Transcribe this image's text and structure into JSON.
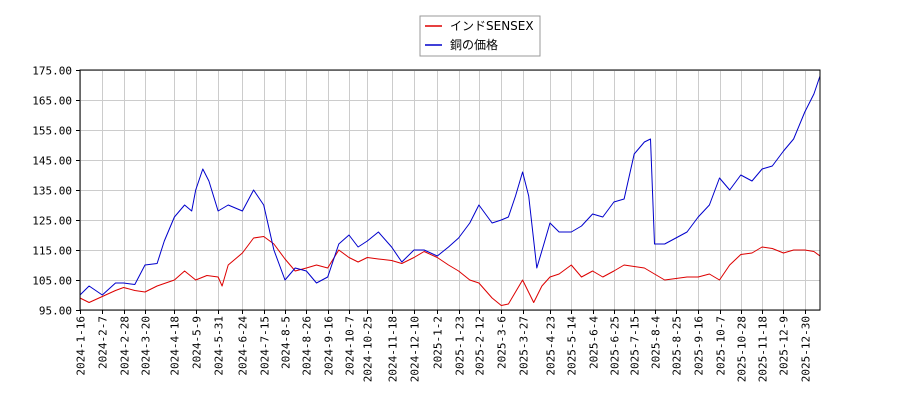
{
  "chart_data": {
    "type": "line",
    "title": "",
    "xlabel": "",
    "ylabel": "",
    "ylim": [
      95,
      175
    ],
    "y_ticks": [
      "95.00",
      "105.00",
      "115.00",
      "125.00",
      "135.00",
      "145.00",
      "155.00",
      "165.00",
      "175.00"
    ],
    "x_range": [
      "2024-1-16",
      "2026-1-14"
    ],
    "x_ticks": [
      "2024-1-16",
      "2024-2-7",
      "2024-2-28",
      "2024-3-20",
      "2024-4-18",
      "2024-5-9",
      "2024-5-31",
      "2024-6-24",
      "2024-7-15",
      "2024-8-5",
      "2024-8-26",
      "2024-9-16",
      "2024-10-7",
      "2024-10-25",
      "2024-11-18",
      "2024-12-10",
      "2025-1-2",
      "2025-1-23",
      "2025-2-12",
      "2025-3-6",
      "2025-3-27",
      "2025-4-23",
      "2025-5-14",
      "2025-6-4",
      "2025-6-25",
      "2025-7-15",
      "2025-8-4",
      "2025-8-25",
      "2025-9-16",
      "2025-10-7",
      "2025-10-28",
      "2025-11-18",
      "2025-12-9",
      "2025-12-30"
    ],
    "grid": true,
    "legend_position": "top-center",
    "series": [
      {
        "name": "インドSENSEX",
        "color": "#dd0000",
        "x": [
          "2024-1-16",
          "2024-1-25",
          "2024-2-7",
          "2024-2-20",
          "2024-2-28",
          "2024-3-10",
          "2024-3-20",
          "2024-4-1",
          "2024-4-18",
          "2024-4-28",
          "2024-5-9",
          "2024-5-20",
          "2024-5-31",
          "2024-6-4",
          "2024-6-10",
          "2024-6-24",
          "2024-7-5",
          "2024-7-15",
          "2024-7-25",
          "2024-8-5",
          "2024-8-15",
          "2024-8-26",
          "2024-9-5",
          "2024-9-16",
          "2024-9-27",
          "2024-10-7",
          "2024-10-16",
          "2024-10-25",
          "2024-11-5",
          "2024-11-18",
          "2024-11-28",
          "2024-12-10",
          "2024-12-20",
          "2025-1-2",
          "2025-1-13",
          "2025-1-23",
          "2025-2-3",
          "2025-2-12",
          "2025-2-25",
          "2025-3-6",
          "2025-3-13",
          "2025-3-20",
          "2025-3-27",
          "2025-4-7",
          "2025-4-15",
          "2025-4-23",
          "2025-5-2",
          "2025-5-14",
          "2025-5-24",
          "2025-6-4",
          "2025-6-14",
          "2025-6-25",
          "2025-7-5",
          "2025-7-15",
          "2025-7-25",
          "2025-8-4",
          "2025-8-14",
          "2025-8-25",
          "2025-9-5",
          "2025-9-16",
          "2025-9-27",
          "2025-10-7",
          "2025-10-17",
          "2025-10-28",
          "2025-11-8",
          "2025-11-18",
          "2025-11-28",
          "2025-12-9",
          "2025-12-19",
          "2025-12-30",
          "2026-1-8",
          "2026-1-14"
        ],
        "y": [
          99.0,
          97.5,
          99.5,
          101.5,
          102.5,
          101.5,
          101.0,
          103.0,
          105.0,
          108.0,
          105.0,
          106.5,
          106.0,
          103.0,
          110.0,
          114.0,
          119.0,
          119.5,
          117.0,
          112.0,
          108.0,
          109.0,
          110.0,
          109.0,
          115.0,
          112.5,
          111.0,
          112.5,
          112.0,
          111.5,
          110.5,
          112.5,
          114.5,
          112.5,
          110.0,
          108.0,
          105.0,
          104.0,
          99.0,
          96.5,
          97.0,
          101.0,
          105.0,
          97.5,
          103.0,
          106.0,
          107.0,
          110.0,
          106.0,
          108.0,
          106.0,
          108.0,
          110.0,
          109.5,
          109.0,
          107.0,
          105.0,
          105.5,
          106.0,
          106.0,
          107.0,
          105.0,
          110.0,
          113.5,
          114.0,
          116.0,
          115.5,
          114.0,
          115.0,
          115.0,
          114.5,
          113.0
        ]
      },
      {
        "name": "銅の価格",
        "color": "#0000cc",
        "x": [
          "2024-1-16",
          "2024-1-25",
          "2024-2-7",
          "2024-2-20",
          "2024-2-28",
          "2024-3-10",
          "2024-3-20",
          "2024-4-1",
          "2024-4-8",
          "2024-4-18",
          "2024-4-28",
          "2024-5-5",
          "2024-5-9",
          "2024-5-16",
          "2024-5-22",
          "2024-5-31",
          "2024-6-10",
          "2024-6-24",
          "2024-7-5",
          "2024-7-15",
          "2024-7-25",
          "2024-8-5",
          "2024-8-15",
          "2024-8-26",
          "2024-9-5",
          "2024-9-16",
          "2024-9-27",
          "2024-10-7",
          "2024-10-16",
          "2024-10-25",
          "2024-11-5",
          "2024-11-18",
          "2024-11-28",
          "2024-12-10",
          "2024-12-20",
          "2025-1-2",
          "2025-1-13",
          "2025-1-23",
          "2025-2-3",
          "2025-2-12",
          "2025-2-25",
          "2025-3-6",
          "2025-3-13",
          "2025-3-20",
          "2025-3-27",
          "2025-4-2",
          "2025-4-10",
          "2025-4-17",
          "2025-4-23",
          "2025-5-2",
          "2025-5-14",
          "2025-5-24",
          "2025-6-4",
          "2025-6-14",
          "2025-6-25",
          "2025-7-5",
          "2025-7-15",
          "2025-7-25",
          "2025-7-31",
          "2025-8-4",
          "2025-8-14",
          "2025-8-25",
          "2025-9-5",
          "2025-9-16",
          "2025-9-27",
          "2025-10-7",
          "2025-10-17",
          "2025-10-28",
          "2025-11-8",
          "2025-11-18",
          "2025-11-28",
          "2025-12-9",
          "2025-12-19",
          "2025-12-30",
          "2026-1-8",
          "2026-1-14"
        ],
        "y": [
          100.0,
          103.0,
          100.0,
          104.0,
          104.0,
          103.5,
          110.0,
          110.5,
          118.0,
          126.0,
          130.0,
          128.0,
          135.0,
          142.0,
          138.0,
          128.0,
          130.0,
          128.0,
          135.0,
          130.0,
          115.0,
          105.0,
          109.0,
          108.0,
          104.0,
          106.0,
          117.0,
          120.0,
          116.0,
          118.0,
          121.0,
          116.0,
          111.0,
          115.0,
          115.0,
          113.0,
          116.0,
          119.0,
          124.0,
          130.0,
          124.0,
          125.0,
          126.0,
          133.0,
          141.0,
          133.0,
          109.0,
          117.0,
          124.0,
          121.0,
          121.0,
          123.0,
          127.0,
          126.0,
          131.0,
          132.0,
          147.0,
          151.0,
          152.0,
          117.0,
          117.0,
          119.0,
          121.0,
          126.0,
          130.0,
          139.0,
          135.0,
          140.0,
          138.0,
          142.0,
          143.0,
          148.0,
          152.0,
          161.0,
          167.0,
          173.0
        ]
      }
    ]
  }
}
